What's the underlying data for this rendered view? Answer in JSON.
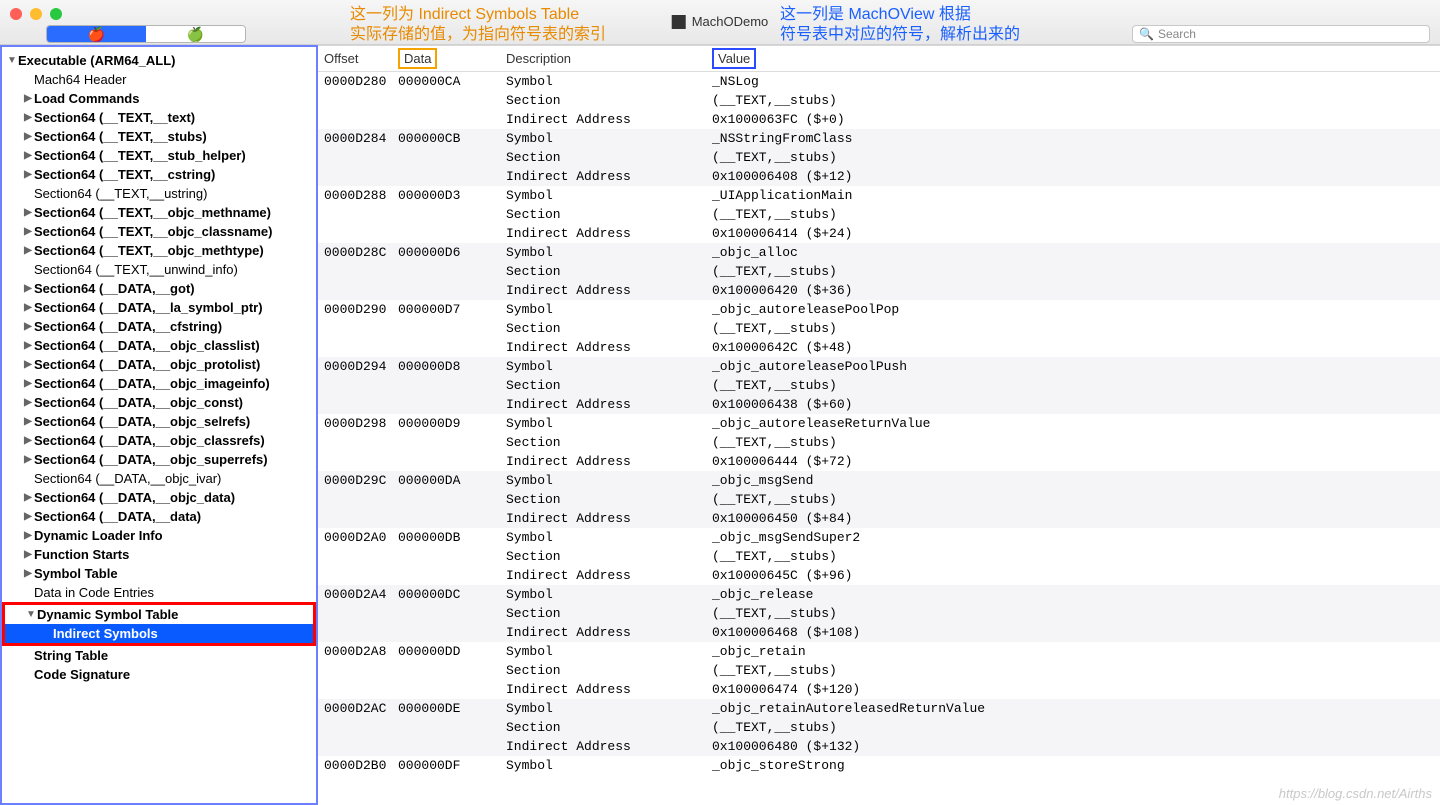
{
  "title": "MachODemo",
  "search_placeholder": "Search",
  "watermark": "https://blog.csdn.net/Airths",
  "annot_orange_l1": "这一列为 Indirect Symbols Table",
  "annot_orange_l2": "实际存储的值，为指向符号表的索引",
  "annot_blue_l1": "这一列是 MachOView 根据",
  "annot_blue_l2": "符号表中对应的符号，解析出来的",
  "cols": {
    "offset": "Offset",
    "data": "Data",
    "desc": "Description",
    "value": "Value"
  },
  "seg": {
    "a": "🍎",
    "b": "🍏"
  },
  "tree": [
    {
      "label": "Executable  (ARM64_ALL)",
      "indent": 0,
      "arrow": "▼",
      "bold": true
    },
    {
      "label": "Mach64 Header",
      "indent": 1,
      "arrow": "",
      "bold": false
    },
    {
      "label": "Load Commands",
      "indent": 1,
      "arrow": "▶",
      "bold": true
    },
    {
      "label": "Section64 (__TEXT,__text)",
      "indent": 1,
      "arrow": "▶",
      "bold": true
    },
    {
      "label": "Section64 (__TEXT,__stubs)",
      "indent": 1,
      "arrow": "▶",
      "bold": true
    },
    {
      "label": "Section64 (__TEXT,__stub_helper)",
      "indent": 1,
      "arrow": "▶",
      "bold": true
    },
    {
      "label": "Section64 (__TEXT,__cstring)",
      "indent": 1,
      "arrow": "▶",
      "bold": true
    },
    {
      "label": "Section64 (__TEXT,__ustring)",
      "indent": 1,
      "arrow": "",
      "bold": false
    },
    {
      "label": "Section64 (__TEXT,__objc_methname)",
      "indent": 1,
      "arrow": "▶",
      "bold": true
    },
    {
      "label": "Section64 (__TEXT,__objc_classname)",
      "indent": 1,
      "arrow": "▶",
      "bold": true
    },
    {
      "label": "Section64 (__TEXT,__objc_methtype)",
      "indent": 1,
      "arrow": "▶",
      "bold": true
    },
    {
      "label": "Section64 (__TEXT,__unwind_info)",
      "indent": 1,
      "arrow": "",
      "bold": false
    },
    {
      "label": "Section64 (__DATA,__got)",
      "indent": 1,
      "arrow": "▶",
      "bold": true
    },
    {
      "label": "Section64 (__DATA,__la_symbol_ptr)",
      "indent": 1,
      "arrow": "▶",
      "bold": true
    },
    {
      "label": "Section64 (__DATA,__cfstring)",
      "indent": 1,
      "arrow": "▶",
      "bold": true
    },
    {
      "label": "Section64 (__DATA,__objc_classlist)",
      "indent": 1,
      "arrow": "▶",
      "bold": true
    },
    {
      "label": "Section64 (__DATA,__objc_protolist)",
      "indent": 1,
      "arrow": "▶",
      "bold": true
    },
    {
      "label": "Section64 (__DATA,__objc_imageinfo)",
      "indent": 1,
      "arrow": "▶",
      "bold": true
    },
    {
      "label": "Section64 (__DATA,__objc_const)",
      "indent": 1,
      "arrow": "▶",
      "bold": true
    },
    {
      "label": "Section64 (__DATA,__objc_selrefs)",
      "indent": 1,
      "arrow": "▶",
      "bold": true
    },
    {
      "label": "Section64 (__DATA,__objc_classrefs)",
      "indent": 1,
      "arrow": "▶",
      "bold": true
    },
    {
      "label": "Section64 (__DATA,__objc_superrefs)",
      "indent": 1,
      "arrow": "▶",
      "bold": true
    },
    {
      "label": "Section64 (__DATA,__objc_ivar)",
      "indent": 1,
      "arrow": "",
      "bold": false
    },
    {
      "label": "Section64 (__DATA,__objc_data)",
      "indent": 1,
      "arrow": "▶",
      "bold": true
    },
    {
      "label": "Section64 (__DATA,__data)",
      "indent": 1,
      "arrow": "▶",
      "bold": true
    },
    {
      "label": "Dynamic Loader Info",
      "indent": 1,
      "arrow": "▶",
      "bold": true
    },
    {
      "label": "Function Starts",
      "indent": 1,
      "arrow": "▶",
      "bold": true
    },
    {
      "label": "Symbol Table",
      "indent": 1,
      "arrow": "▶",
      "bold": true
    },
    {
      "label": "Data in Code Entries",
      "indent": 1,
      "arrow": "",
      "bold": false
    },
    {
      "label": "Dynamic Symbol Table",
      "indent": 1,
      "arrow": "▼",
      "bold": true,
      "redbox": "start"
    },
    {
      "label": "Indirect Symbols",
      "indent": 2,
      "arrow": "",
      "bold": true,
      "selected": true,
      "redbox": "end"
    },
    {
      "label": "String Table",
      "indent": 1,
      "arrow": "",
      "bold": true
    },
    {
      "label": "Code Signature",
      "indent": 1,
      "arrow": "",
      "bold": true
    }
  ],
  "groups": [
    {
      "offset": "0000D280",
      "data": "000000CA",
      "sym": "_NSLog",
      "sec": "(__TEXT,__stubs)",
      "ia": "0x1000063FC ($+0)"
    },
    {
      "offset": "0000D284",
      "data": "000000CB",
      "sym": "_NSStringFromClass",
      "sec": "(__TEXT,__stubs)",
      "ia": "0x100006408 ($+12)"
    },
    {
      "offset": "0000D288",
      "data": "000000D3",
      "sym": "_UIApplicationMain",
      "sec": "(__TEXT,__stubs)",
      "ia": "0x100006414 ($+24)"
    },
    {
      "offset": "0000D28C",
      "data": "000000D6",
      "sym": "_objc_alloc",
      "sec": "(__TEXT,__stubs)",
      "ia": "0x100006420 ($+36)"
    },
    {
      "offset": "0000D290",
      "data": "000000D7",
      "sym": "_objc_autoreleasePoolPop",
      "sec": "(__TEXT,__stubs)",
      "ia": "0x10000642C ($+48)"
    },
    {
      "offset": "0000D294",
      "data": "000000D8",
      "sym": "_objc_autoreleasePoolPush",
      "sec": "(__TEXT,__stubs)",
      "ia": "0x100006438 ($+60)"
    },
    {
      "offset": "0000D298",
      "data": "000000D9",
      "sym": "_objc_autoreleaseReturnValue",
      "sec": "(__TEXT,__stubs)",
      "ia": "0x100006444 ($+72)"
    },
    {
      "offset": "0000D29C",
      "data": "000000DA",
      "sym": "_objc_msgSend",
      "sec": "(__TEXT,__stubs)",
      "ia": "0x100006450 ($+84)"
    },
    {
      "offset": "0000D2A0",
      "data": "000000DB",
      "sym": "_objc_msgSendSuper2",
      "sec": "(__TEXT,__stubs)",
      "ia": "0x10000645C ($+96)"
    },
    {
      "offset": "0000D2A4",
      "data": "000000DC",
      "sym": "_objc_release",
      "sec": "(__TEXT,__stubs)",
      "ia": "0x100006468 ($+108)"
    },
    {
      "offset": "0000D2A8",
      "data": "000000DD",
      "sym": "_objc_retain",
      "sec": "(__TEXT,__stubs)",
      "ia": "0x100006474 ($+120)"
    },
    {
      "offset": "0000D2AC",
      "data": "000000DE",
      "sym": "_objc_retainAutoreleasedReturnValue",
      "sec": "(__TEXT,__stubs)",
      "ia": "0x100006480 ($+132)"
    },
    {
      "offset": "0000D2B0",
      "data": "000000DF",
      "sym": "_objc_storeStrong",
      "sec": "",
      "ia": "",
      "partial": true
    }
  ],
  "labels": {
    "symbol": "Symbol",
    "section": "Section",
    "indirect": "Indirect Address"
  }
}
